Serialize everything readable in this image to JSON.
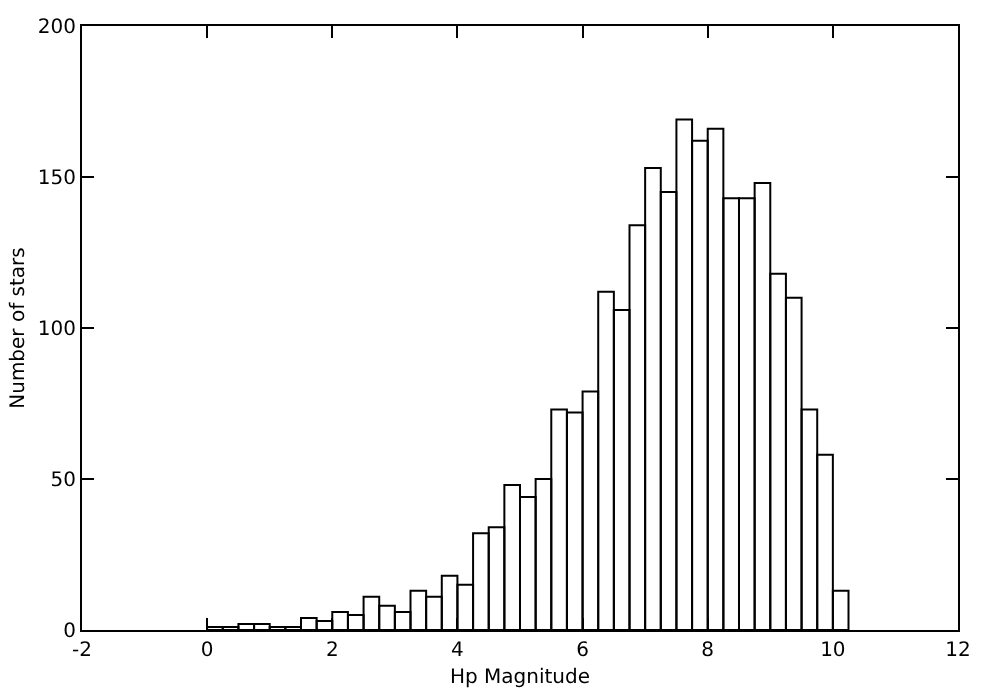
{
  "chart_data": {
    "type": "histogram",
    "xlabel": "Hp Magnitude",
    "ylabel": "Number of stars",
    "color": "#000000",
    "bins": [
      0,
      0.25,
      0.5,
      0.75,
      1,
      1.25,
      1.5,
      1.75,
      2,
      2.25,
      2.5,
      2.75,
      3,
      3.25,
      3.5,
      3.75,
      4,
      4.25,
      4.5,
      4.75,
      5,
      5.25,
      5.5,
      5.75,
      6,
      6.25,
      6.5,
      6.75,
      7,
      7.25,
      7.5,
      7.75,
      8,
      8.25,
      8.5,
      8.75,
      9,
      9.25,
      9.5,
      9.75,
      10,
      10.25
    ],
    "values": [
      1,
      1,
      2,
      2,
      1,
      1,
      4,
      3,
      6,
      5,
      11,
      8,
      6,
      13,
      11,
      18,
      15,
      32,
      34,
      48,
      44,
      50,
      73,
      72,
      79,
      112,
      106,
      134,
      153,
      145,
      169,
      162,
      166,
      143,
      143,
      148,
      118,
      110,
      73,
      58,
      13
    ],
    "xlim": [
      -2,
      12
    ],
    "xticks": [
      -2,
      0,
      2,
      4,
      6,
      8,
      10,
      12
    ],
    "ylim": [
      0,
      200
    ],
    "yticks": [
      0,
      50,
      100,
      150,
      200
    ]
  }
}
